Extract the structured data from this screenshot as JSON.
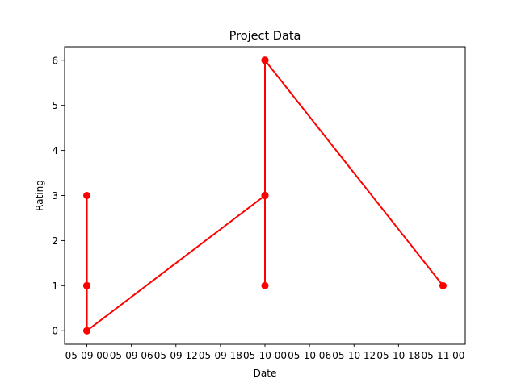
{
  "chart_data": {
    "type": "line",
    "title": "Project Data",
    "xlabel": "Date",
    "ylabel": "Rating",
    "x": [
      "2023-05-09 00:00",
      "2023-05-09 00:00",
      "2023-05-09 00:00",
      "2023-05-09 00:00",
      "2023-05-09 00:00",
      "2023-05-09 00:00",
      "2023-05-10 00:00",
      "2023-05-10 00:00",
      "2023-05-10 00:00",
      "2023-05-10 00:00",
      "2023-05-10 00:00",
      "2023-05-11 00:00"
    ],
    "y": [
      1,
      3,
      1,
      0,
      1,
      0,
      3,
      1,
      3,
      6,
      6,
      1
    ],
    "xlim": [
      "2023-05-08 21:00",
      "2023-05-11 03:00"
    ],
    "ylim": [
      -0.3,
      6.3
    ],
    "x_ticks": [
      "05-09 00",
      "05-09 06",
      "05-09 12",
      "05-09 18",
      "05-10 00",
      "05-10 06",
      "05-10 12",
      "05-10 18",
      "05-11 00"
    ],
    "y_ticks": [
      "0",
      "1",
      "2",
      "3",
      "4",
      "5",
      "6"
    ],
    "series_color": "#ff0000",
    "grid": false
  }
}
